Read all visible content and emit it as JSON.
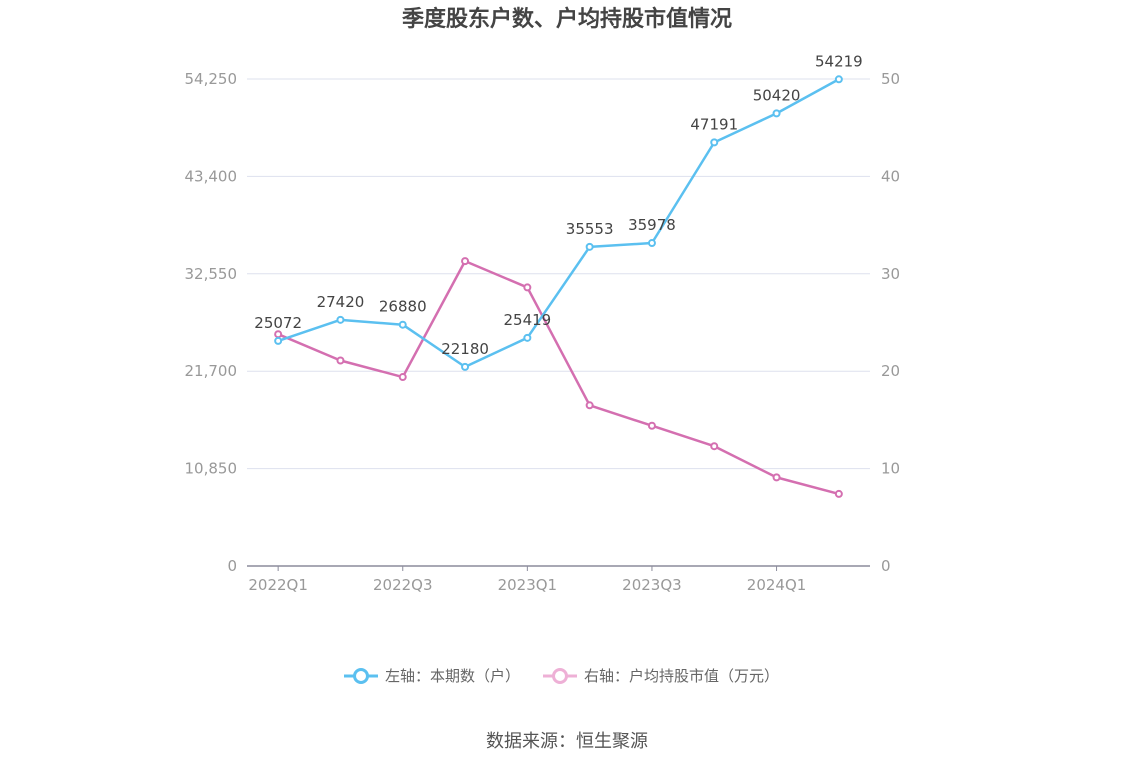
{
  "chart_data": {
    "type": "line",
    "title": "季度股东户数、户均持股市值情况",
    "categories": [
      "2022Q1",
      "2022Q2",
      "2022Q3",
      "2022Q4",
      "2023Q1",
      "2023Q2",
      "2023Q3",
      "2023Q4",
      "2024Q1",
      "2024Q2"
    ],
    "x_tick_labels": [
      "2022Q1",
      "2022Q3",
      "2023Q1",
      "2023Q3",
      "2024Q1"
    ],
    "left_axis": {
      "ylim": [
        0,
        54250
      ],
      "ticks": [
        "0",
        "10,850",
        "21,700",
        "32,550",
        "43,400",
        "54,250"
      ]
    },
    "right_axis": {
      "ylim": [
        0,
        50
      ],
      "ticks": [
        "0",
        "10",
        "20",
        "30",
        "40",
        "50"
      ]
    },
    "series": [
      {
        "name": "左轴：本期数（户）",
        "axis": "left",
        "color": "#5bc0f0",
        "values": [
          25072,
          27420,
          26880,
          22180,
          25419,
          35553,
          35978,
          47191,
          50420,
          54219
        ],
        "labels": [
          "25072",
          "27420",
          "26880",
          "22180",
          "25419",
          "35553",
          "35978",
          "47191",
          "50420",
          "54219"
        ]
      },
      {
        "name": "右轴：户均持股市值（万元）",
        "axis": "right",
        "color": "#d46fb0",
        "values": [
          23.8,
          21.1,
          19.4,
          31.3,
          28.6,
          16.5,
          14.4,
          12.3,
          9.1,
          7.4
        ]
      }
    ],
    "grid": true,
    "legend_position": "bottom-center"
  },
  "source_text": "数据来源：恒生聚源"
}
